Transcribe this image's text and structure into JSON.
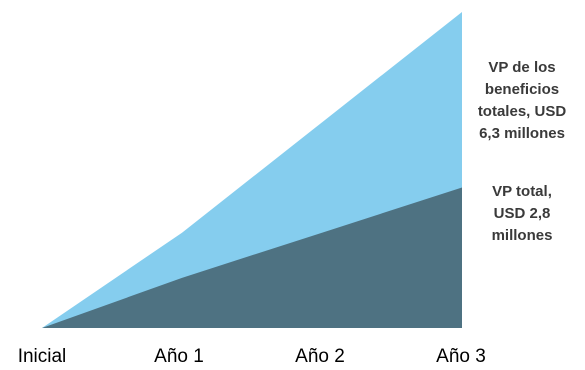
{
  "chart_data": {
    "type": "area",
    "categories": [
      "Inicial",
      "Año 1",
      "Año 2",
      "Año 3"
    ],
    "ylim": [
      0,
      6.3
    ],
    "grid": false,
    "legend": "right, inline labels",
    "series": [
      {
        "name": "VP de los beneficios totales, USD 6,3 millones",
        "label_lines": [
          "VP de los",
          "beneficios",
          "totales, USD",
          "6,3 millones"
        ],
        "values": [
          0,
          1.9,
          4.1,
          6.3
        ],
        "color": "#85cdee"
      },
      {
        "name": "VP total, USD 2,8 millones",
        "label_lines": [
          "VP total,",
          "USD 2,8",
          "millones"
        ],
        "values": [
          0,
          1.0,
          1.9,
          2.8
        ],
        "color": "#4e7282"
      }
    ]
  }
}
